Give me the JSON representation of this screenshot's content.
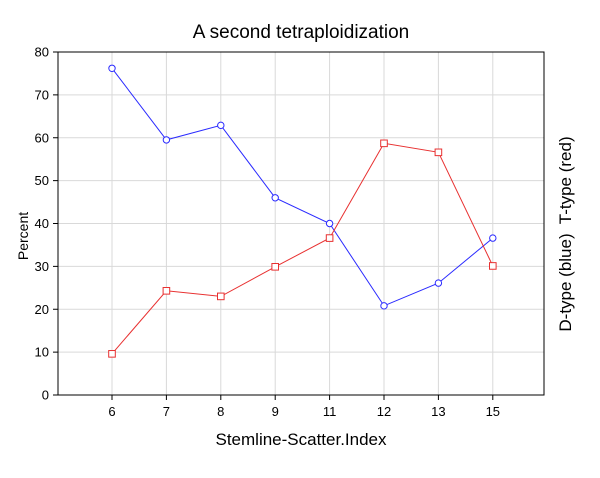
{
  "chart_data": {
    "type": "line",
    "title": "A second tetraploidization",
    "xlabel": "Stemline-Scatter.Index",
    "ylabel": "Percent",
    "right_label": "D-type (blue)  T-type (red)",
    "categories": [
      "6",
      "7",
      "8",
      "9",
      "11",
      "12",
      "13",
      "15"
    ],
    "ylim": [
      0,
      80
    ],
    "yticks": [
      "0",
      "10",
      "20",
      "30",
      "40",
      "50",
      "60",
      "70",
      "80"
    ],
    "grid": true,
    "series": [
      {
        "values": [
          76.2,
          59.5,
          62.9,
          46.0,
          40.0,
          20.8,
          26.1,
          36.6
        ],
        "color": "#2a2aff",
        "marker": "circle"
      },
      {
        "values": [
          9.6,
          24.3,
          23.0,
          29.9,
          36.6,
          58.7,
          56.6,
          30.1
        ],
        "color": "#e83030",
        "marker": "square"
      }
    ]
  }
}
